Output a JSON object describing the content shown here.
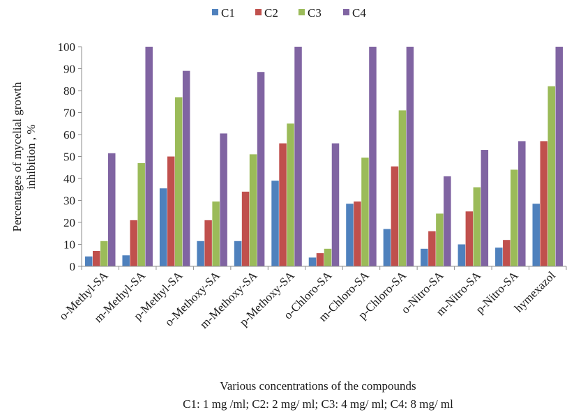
{
  "chart_data": {
    "type": "bar",
    "categories": [
      "o-Methyl-SA",
      "m-Methyl-SA",
      "p-Methyl-SA",
      "o-Methoxy-SA",
      "m-Methoxy-SA",
      "p-Methoxy-SA",
      "o-Chloro-SA",
      "m-Chloro-SA",
      "p-Chloro-SA",
      "o-Nitro-SA",
      "m-Nitro-SA",
      "p-Nitro-SA",
      "hymexazol"
    ],
    "series": [
      {
        "name": "C1",
        "color": "#4f81bd",
        "values": [
          4.5,
          5,
          35.5,
          11.5,
          11.5,
          39,
          4,
          28.5,
          17,
          8,
          10,
          8.5,
          28.5
        ]
      },
      {
        "name": "C2",
        "color": "#c0504d",
        "values": [
          7,
          21,
          50,
          21,
          34,
          56,
          6,
          29.5,
          45.5,
          16,
          25,
          12,
          57
        ]
      },
      {
        "name": "C3",
        "color": "#9bbb59",
        "values": [
          11.5,
          47,
          77,
          29.5,
          51,
          65,
          8,
          49.5,
          71,
          24,
          36,
          44,
          82
        ]
      },
      {
        "name": "C4",
        "color": "#8064a2",
        "values": [
          51.5,
          100,
          89,
          60.5,
          88.5,
          100,
          56,
          100,
          100,
          41,
          53,
          57,
          100
        ]
      }
    ],
    "ylim": [
      0,
      100
    ],
    "yticks": [
      "0",
      "10",
      "20",
      "30",
      "40",
      "50",
      "60",
      "70",
      "80",
      "90",
      "100"
    ],
    "ylabel_line1": "Percentages of mycelial growth",
    "ylabel_line2": "inhibition , %",
    "xlabel_line1": "Various concentrations of the compounds",
    "xlabel_line2": "C1: 1 mg /ml; C2: 2 mg/ ml; C3: 4 mg/ ml;  C4: 8 mg/ ml",
    "legend_position": "top-center",
    "grid": false
  }
}
